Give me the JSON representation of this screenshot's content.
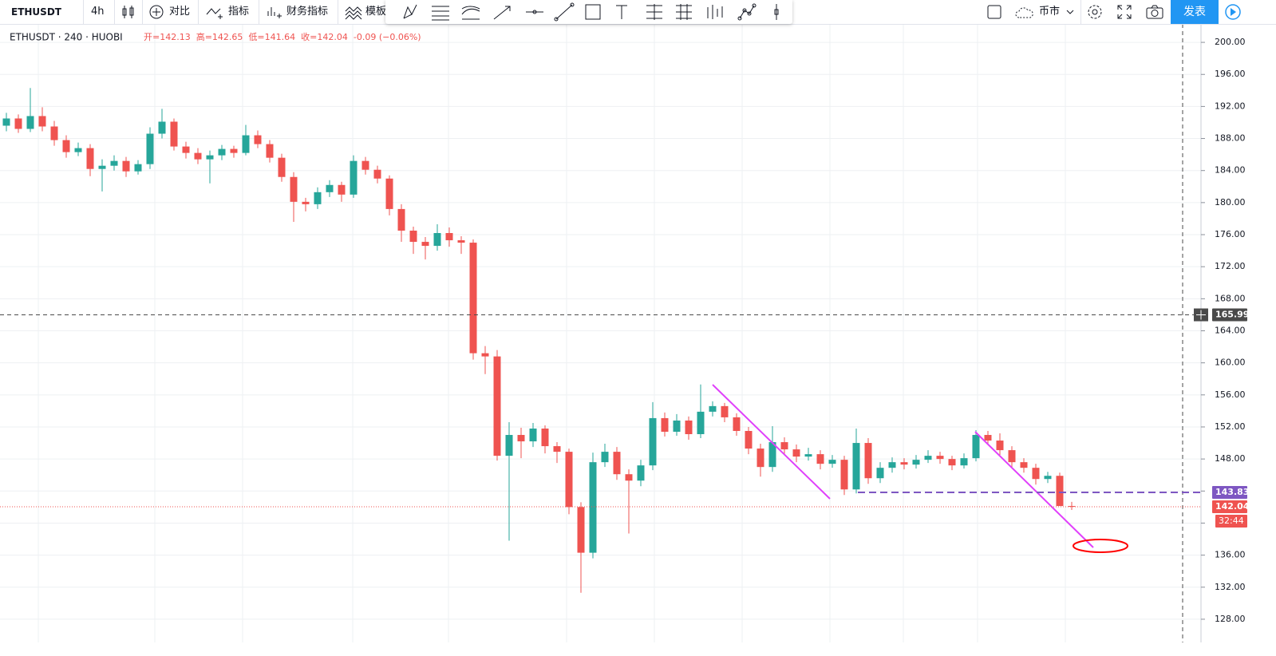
{
  "toolbar": {
    "symbol": "ETHUSDT",
    "interval": "4h",
    "compare": "对比",
    "indicators": "指标",
    "financials": "财务指标",
    "templates": "模板",
    "market": "币市",
    "publish": "发表"
  },
  "chart_data": {
    "type": "candlestick",
    "header": {
      "symbol": "ETHUSDT · 240 · HUOBI",
      "legend": [
        "开=142.13",
        "高=142.65",
        "低=141.64",
        "收=142.04",
        "-0.09 (−0.06%)"
      ]
    },
    "up_color": "#26a69a",
    "down_color": "#ef5350",
    "open": [
      189.6,
      190.5,
      189.2,
      190.8,
      189.5,
      187.8,
      186.3,
      186.8,
      184.2,
      184.6,
      185.2,
      183.9,
      184.8,
      188.6,
      190.1,
      187.0,
      186.2,
      185.4,
      185.9,
      186.7,
      186.2,
      188.4,
      187.3,
      185.6,
      183.2,
      180.1,
      179.8,
      181.3,
      182.2,
      181.0,
      185.2,
      184.1,
      183.0,
      179.2,
      176.5,
      175.1,
      174.6,
      176.2,
      175.3,
      175.0,
      161.2,
      160.8,
      148.4,
      151.0,
      150.2,
      151.8,
      149.6,
      148.9,
      142.0,
      136.3,
      147.6,
      148.9,
      146.1,
      145.3,
      147.2,
      153.1,
      151.4,
      152.8,
      151.1,
      153.9,
      154.6,
      153.2,
      151.5,
      149.3,
      147.0,
      150.1,
      149.2,
      148.3,
      148.6,
      147.4,
      147.9,
      144.2,
      150.0,
      145.6,
      146.9,
      147.6,
      147.3,
      147.9,
      148.4,
      148.0,
      147.2,
      148.1,
      151.0,
      150.3,
      149.1,
      147.6,
      146.9,
      145.5,
      145.9,
      142.13
    ],
    "high": [
      191.2,
      191.0,
      194.3,
      191.9,
      190.2,
      188.4,
      187.5,
      187.3,
      185.4,
      185.9,
      185.7,
      185.3,
      189.4,
      191.7,
      190.5,
      187.6,
      186.8,
      186.5,
      187.2,
      187.1,
      189.7,
      189.0,
      187.8,
      186.1,
      183.8,
      180.6,
      181.9,
      182.8,
      182.6,
      185.9,
      185.7,
      184.6,
      183.4,
      179.8,
      177.0,
      175.7,
      177.3,
      176.9,
      175.8,
      175.4,
      162.1,
      161.6,
      152.6,
      151.9,
      152.5,
      152.2,
      150.1,
      149.3,
      142.6,
      148.8,
      149.9,
      149.5,
      146.7,
      147.9,
      155.1,
      153.8,
      153.6,
      153.3,
      157.3,
      155.2,
      155.0,
      153.7,
      152.0,
      149.9,
      152.1,
      150.7,
      149.8,
      149.4,
      149.1,
      148.5,
      148.4,
      151.8,
      150.6,
      147.6,
      148.2,
      148.1,
      148.5,
      149.1,
      148.9,
      148.4,
      148.7,
      151.6,
      151.5,
      151.2,
      149.6,
      148.1,
      147.4,
      146.4,
      146.3,
      142.65
    ],
    "low": [
      188.9,
      188.7,
      188.8,
      188.9,
      187.1,
      185.6,
      185.8,
      183.3,
      181.4,
      184.0,
      183.2,
      183.5,
      184.2,
      188.0,
      186.5,
      185.5,
      184.8,
      182.4,
      185.3,
      185.6,
      185.9,
      186.8,
      185.0,
      182.6,
      177.6,
      178.9,
      179.2,
      180.7,
      180.1,
      180.6,
      183.5,
      182.4,
      178.4,
      175.1,
      173.6,
      172.9,
      174.0,
      174.5,
      173.6,
      160.4,
      158.6,
      147.8,
      137.8,
      148.1,
      149.5,
      148.7,
      147.5,
      141.1,
      131.3,
      135.6,
      147.0,
      145.4,
      138.7,
      144.6,
      146.6,
      150.8,
      150.9,
      150.4,
      150.6,
      153.3,
      152.6,
      150.9,
      148.6,
      145.8,
      146.4,
      148.6,
      147.6,
      147.8,
      146.7,
      146.9,
      143.5,
      143.7,
      144.9,
      145.0,
      146.3,
      146.7,
      146.8,
      147.5,
      147.4,
      146.6,
      146.8,
      147.7,
      149.8,
      148.5,
      147.0,
      146.3,
      144.8,
      145.0,
      142.6,
      141.64
    ],
    "close": [
      190.5,
      189.2,
      190.8,
      189.5,
      187.8,
      186.3,
      186.8,
      184.2,
      184.6,
      185.2,
      183.9,
      184.8,
      188.6,
      190.1,
      187.0,
      186.2,
      185.4,
      185.9,
      186.7,
      186.2,
      188.4,
      187.3,
      185.6,
      183.2,
      180.1,
      179.8,
      181.3,
      182.2,
      181.0,
      185.2,
      184.1,
      183.0,
      179.2,
      176.5,
      175.1,
      174.6,
      176.2,
      175.3,
      175.0,
      161.2,
      160.8,
      148.4,
      151.0,
      150.2,
      151.8,
      149.6,
      148.9,
      142.0,
      136.3,
      147.6,
      148.9,
      146.1,
      145.3,
      147.2,
      153.1,
      151.4,
      152.8,
      151.1,
      153.9,
      154.6,
      153.2,
      151.5,
      149.3,
      147.0,
      150.1,
      149.2,
      148.3,
      148.6,
      147.4,
      147.9,
      144.2,
      150.0,
      145.6,
      146.9,
      147.6,
      147.3,
      147.9,
      148.4,
      148.0,
      147.2,
      148.1,
      151.0,
      150.3,
      149.1,
      147.6,
      146.9,
      145.5,
      145.9,
      142.13,
      142.04
    ],
    "ylim": [
      126,
      202
    ],
    "yticks": [
      {
        "value": 128,
        "label": "128.00"
      },
      {
        "value": 132,
        "label": "132.00"
      },
      {
        "value": 136,
        "label": "136.00"
      },
      {
        "value": 140,
        "label": "140.00"
      },
      {
        "value": 144,
        "label": "144.00"
      },
      {
        "value": 148,
        "label": "148.00"
      },
      {
        "value": 152,
        "label": "152.00"
      },
      {
        "value": 156,
        "label": "156.00"
      },
      {
        "value": 160,
        "label": "160.00"
      },
      {
        "value": 164,
        "label": "164.00"
      },
      {
        "value": 168,
        "label": "168.00"
      },
      {
        "value": 172,
        "label": "172.00"
      },
      {
        "value": 176,
        "label": "176.00"
      },
      {
        "value": 180,
        "label": "180.00"
      },
      {
        "value": 184,
        "label": "184.00"
      },
      {
        "value": 188,
        "label": "188.00"
      },
      {
        "value": 192,
        "label": "192.00"
      },
      {
        "value": 196,
        "label": "196.00"
      },
      {
        "value": 200,
        "label": "200.00"
      }
    ],
    "grid": true,
    "price_lines": [
      {
        "value": 165.99,
        "color": "#4a4a4a"
      },
      {
        "value": 143.83,
        "color": "#7e57c2"
      },
      {
        "value": 142.04,
        "color": "#ef5350"
      }
    ],
    "countdown": "32:44"
  }
}
